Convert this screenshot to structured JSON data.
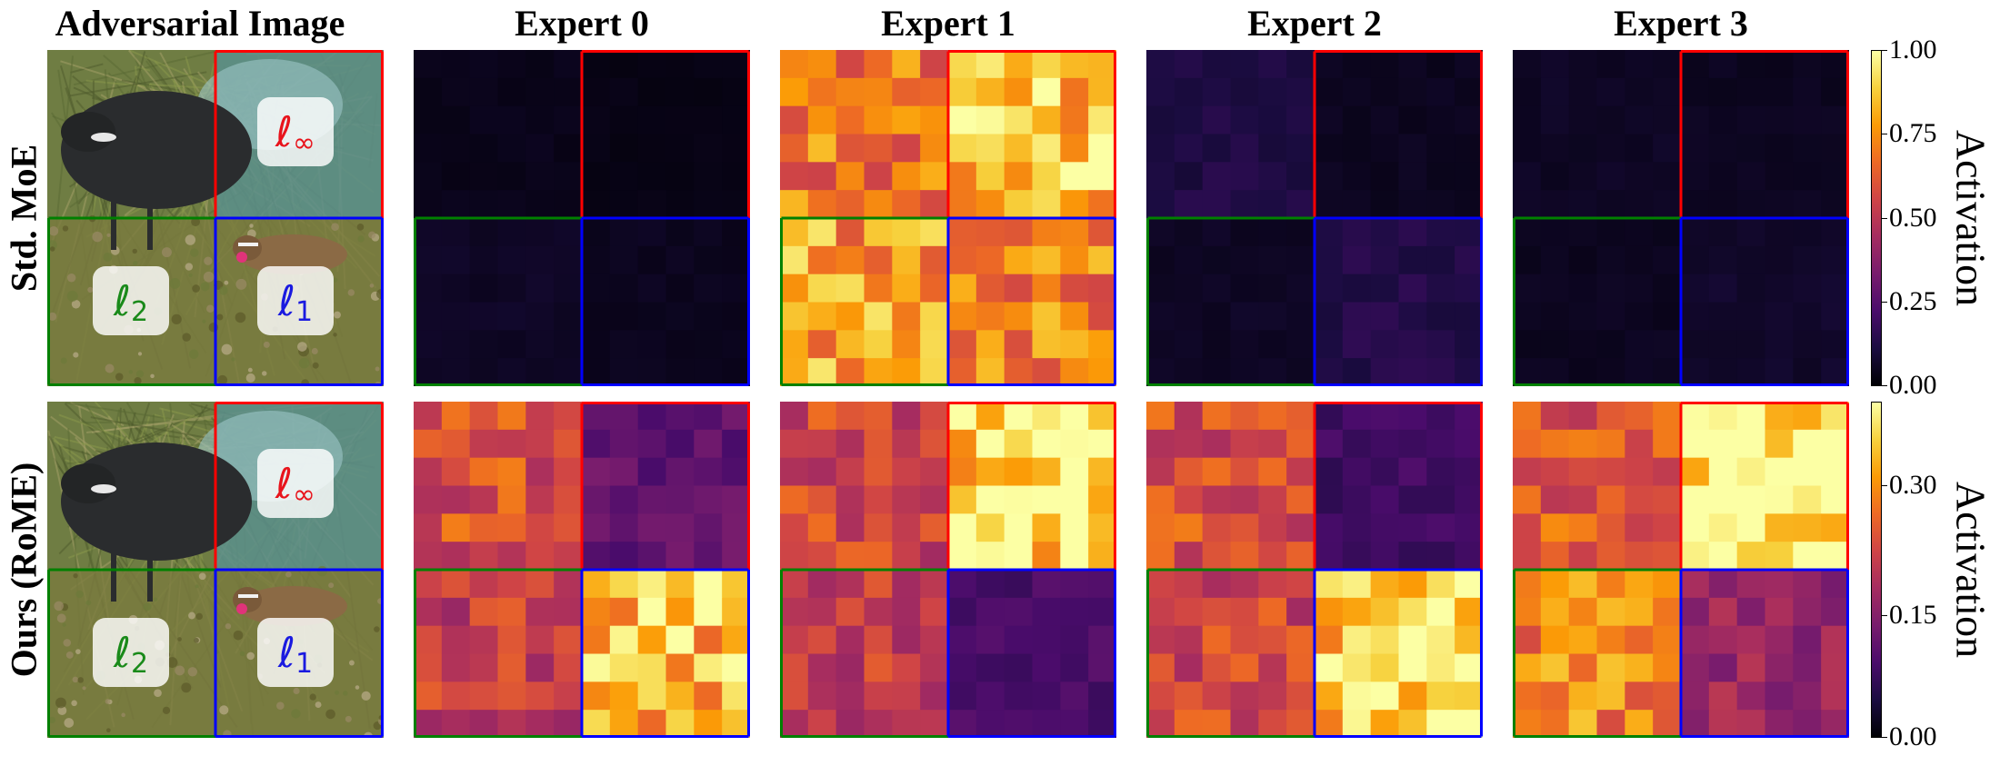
{
  "figure": {
    "columns": [
      "Adversarial Image",
      "Expert 0",
      "Expert 1",
      "Expert 2",
      "Expert 3"
    ],
    "rows": [
      {
        "label": "Std. MoE",
        "colorbar": {
          "ticks": [
            "1.00",
            "0.75",
            "0.50",
            "0.25",
            "0.00"
          ],
          "label": "Activation"
        }
      },
      {
        "label": "Ours (RoME)",
        "colorbar": {
          "ticks": [
            "0.30",
            "0.15",
            "0.00"
          ],
          "label": "Activation"
        }
      }
    ],
    "quadrant_labels": {
      "top_right": {
        "letter": "ℓ",
        "sub": "∞",
        "color": "#e8141c"
      },
      "bottom_left": {
        "letter": "ℓ",
        "sub": "2",
        "color": "#1a8a1a"
      },
      "bottom_right": {
        "letter": "ℓ",
        "sub": "1",
        "color": "#1a1ae0"
      }
    },
    "quadrant_colors": {
      "top_right": "#ff0000",
      "bottom_left": "#008000",
      "bottom_right": "#0000ff"
    },
    "colormap": "inferno"
  },
  "chart_data": {
    "type": "heatmap",
    "grid": [
      12,
      12
    ],
    "series": [
      {
        "name": "Std. MoE / Expert 0",
        "quadrant_means": [
          0.04,
          0.03,
          0.06,
          0.05
        ]
      },
      {
        "name": "Std. MoE / Expert 1",
        "quadrant_means": [
          0.7,
          0.88,
          0.78,
          0.72
        ]
      },
      {
        "name": "Std. MoE / Expert 2",
        "quadrant_means": [
          0.12,
          0.05,
          0.06,
          0.13
        ]
      },
      {
        "name": "Std. MoE / Expert 3",
        "quadrant_means": [
          0.06,
          0.05,
          0.05,
          0.07
        ]
      },
      {
        "name": "Ours (RoME) / Expert 0",
        "quadrant_means": [
          0.21,
          0.1,
          0.19,
          0.3
        ]
      },
      {
        "name": "Ours (RoME) / Expert 1",
        "quadrant_means": [
          0.2,
          0.33,
          0.19,
          0.08
        ]
      },
      {
        "name": "Ours (RoME) / Expert 2",
        "quadrant_means": [
          0.21,
          0.07,
          0.2,
          0.32
        ]
      },
      {
        "name": "Ours (RoME) / Expert 3",
        "quadrant_means": [
          0.22,
          0.36,
          0.26,
          0.15
        ]
      }
    ]
  }
}
